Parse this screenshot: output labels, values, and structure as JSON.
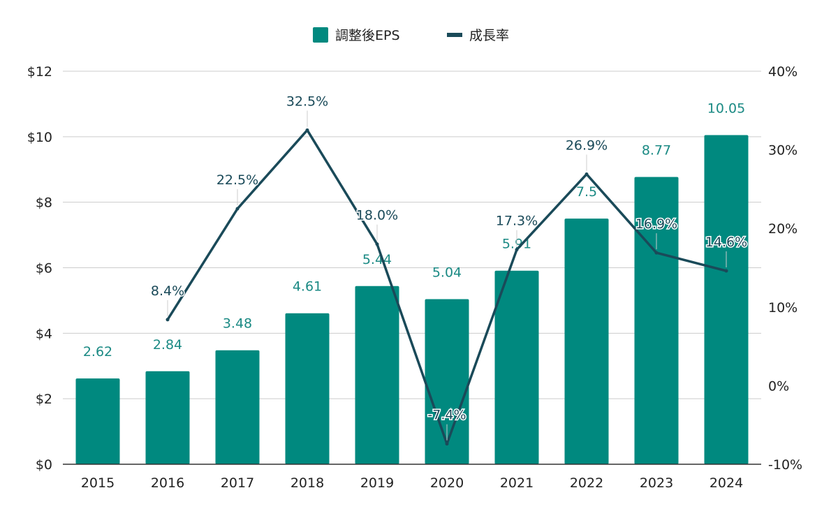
{
  "chart_data": {
    "type": "bar",
    "title": "",
    "legend": {
      "position": "top-center"
    },
    "categories": [
      "2015",
      "2016",
      "2017",
      "2018",
      "2019",
      "2020",
      "2021",
      "2022",
      "2023",
      "2024"
    ],
    "series": [
      {
        "name": "調整後EPS",
        "type": "bar",
        "axis": "left",
        "color": "#00897f",
        "values": [
          2.62,
          2.84,
          3.48,
          4.61,
          5.44,
          5.04,
          5.91,
          7.5,
          8.77,
          10.05
        ],
        "data_labels": [
          "2.62",
          "2.84",
          "3.48",
          "4.61",
          "5.44",
          "5.04",
          "5.91",
          "7.5",
          "8.77",
          "10.05"
        ]
      },
      {
        "name": "成長率",
        "type": "line",
        "axis": "right",
        "color": "#1a4a59",
        "values": [
          null,
          8.4,
          22.5,
          32.5,
          18.0,
          -7.4,
          17.3,
          26.9,
          16.9,
          14.6
        ],
        "data_labels": [
          null,
          "8.4%",
          "22.5%",
          "32.5%",
          "18.0%",
          "-7.4%",
          "17.3%",
          "26.9%",
          "16.9%",
          "14.6%"
        ]
      }
    ],
    "y_left": {
      "range": [
        0,
        12
      ],
      "ticks": [
        0,
        2,
        4,
        6,
        8,
        10,
        12
      ],
      "tick_labels": [
        "$0",
        "$2",
        "$4",
        "$6",
        "$8",
        "$10",
        "$12"
      ]
    },
    "y_right": {
      "range": [
        -10,
        40
      ],
      "ticks": [
        -10,
        0,
        10,
        20,
        30,
        40
      ],
      "tick_labels": [
        "-10%",
        "0%",
        "10%",
        "20%",
        "30%",
        "40%"
      ]
    },
    "grid": true
  }
}
